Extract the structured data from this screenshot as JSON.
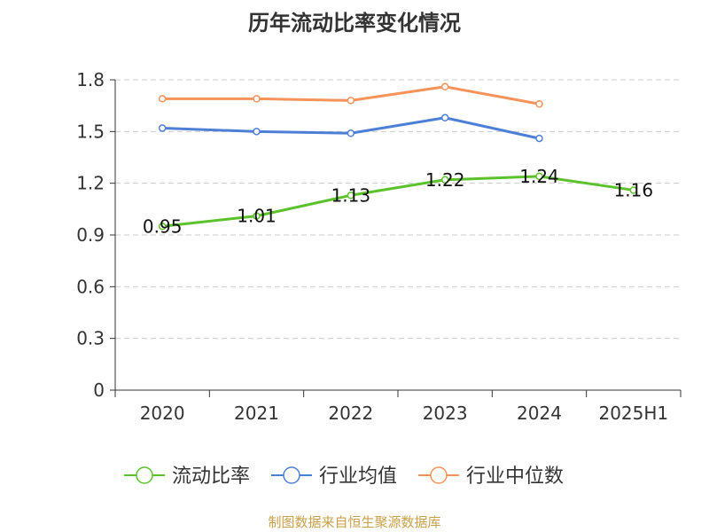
{
  "chart_data": {
    "type": "line",
    "title": "历年流动比率变化情况",
    "categories": [
      "2020",
      "2021",
      "2022",
      "2023",
      "2024",
      "2025H1"
    ],
    "y_ticks": [
      "0",
      "0.3",
      "0.6",
      "0.9",
      "1.2",
      "1.5",
      "1.8"
    ],
    "ylim": [
      0,
      1.8
    ],
    "grid": true,
    "legend_position": "bottom",
    "series": [
      {
        "name": "流动比率",
        "color": "#5cc22b",
        "values": [
          0.95,
          1.01,
          1.13,
          1.22,
          1.24,
          1.16
        ],
        "labels": [
          "0.95",
          "1.01",
          "1.13",
          "1.22",
          "1.24",
          "1.16"
        ]
      },
      {
        "name": "行业均值",
        "color": "#4e7fd6",
        "values": [
          1.52,
          1.5,
          1.49,
          1.58,
          1.46,
          null
        ]
      },
      {
        "name": "行业中位数",
        "color": "#f5935a",
        "values": [
          1.69,
          1.69,
          1.68,
          1.76,
          1.66,
          null
        ]
      }
    ]
  },
  "footer": {
    "source": "制图数据来自恒生聚源数据库"
  }
}
